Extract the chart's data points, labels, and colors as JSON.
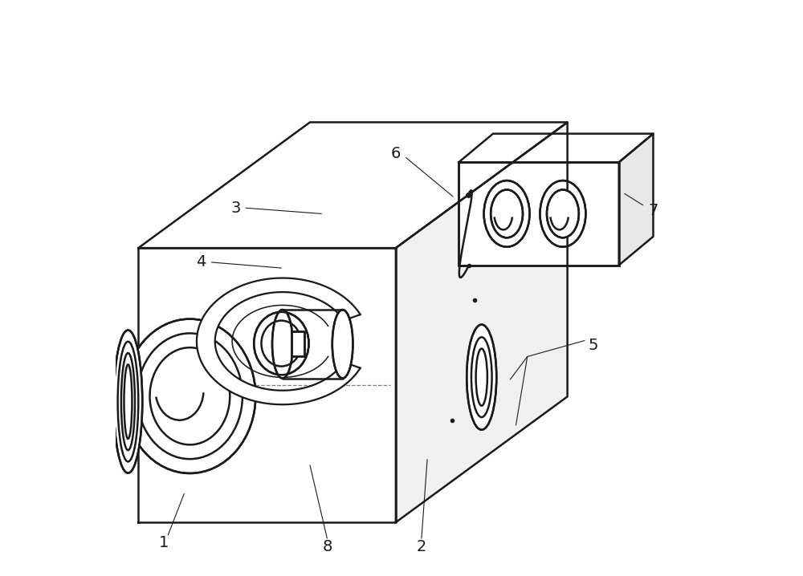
{
  "bg_color": "#ffffff",
  "line_color": "#1a1a1a",
  "line_width": 1.8,
  "fig_width": 10.0,
  "fig_height": 7.18,
  "label_fontsize": 14
}
